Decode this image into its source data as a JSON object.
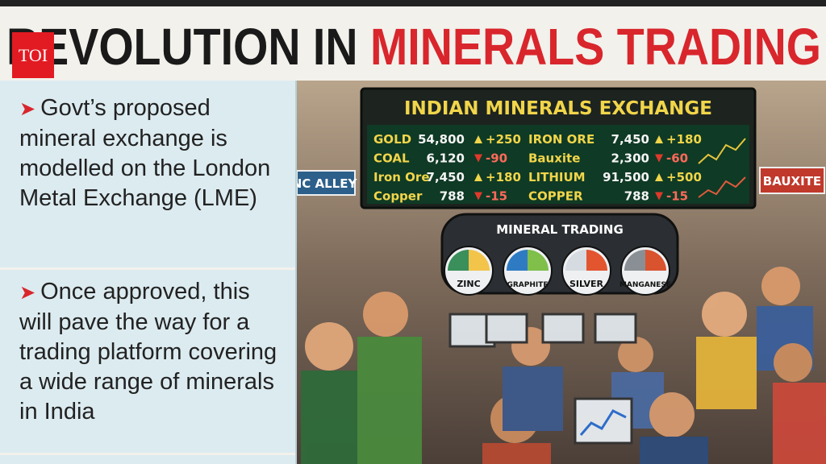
{
  "header": {
    "logo": "TOI",
    "title_black": "REVOLUTION IN",
    "title_red": "MINERALS TRADING"
  },
  "bullets": [
    "Govt’s proposed mineral exchange is modelled on the London Metal Exchange (LME)",
    "Once approved, this will pave the way for a trading platform covering a wide range of minerals in India"
  ],
  "illustration": {
    "board_title": "INDIAN MINERALS EXCHANGE",
    "board_rows": [
      {
        "name": "GOLD",
        "price": "54,800",
        "change": "+250"
      },
      {
        "name": "COAL",
        "price": "6,120",
        "change": "-90"
      },
      {
        "name": "Iron Ore",
        "price": "7,450",
        "change": "+180"
      },
      {
        "name": "Copper",
        "price": "788",
        "change": "-15"
      },
      {
        "name": "IRON ORE",
        "price": "7,450",
        "change": "+180"
      },
      {
        "name": "Bauxite",
        "price": "2,300",
        "change": "-60"
      },
      {
        "name": "LITHIUM",
        "price": "91,500",
        "change": "+500"
      },
      {
        "name": "COPPER",
        "price": "788",
        "change": "-15"
      }
    ],
    "signs": [
      "NC ALLEY",
      "BAUXITE"
    ],
    "panel_title": "MINERAL TRADING",
    "gauges": [
      "ZINC",
      "GRAPHITE",
      "SILVER",
      "MANGANESE"
    ]
  }
}
